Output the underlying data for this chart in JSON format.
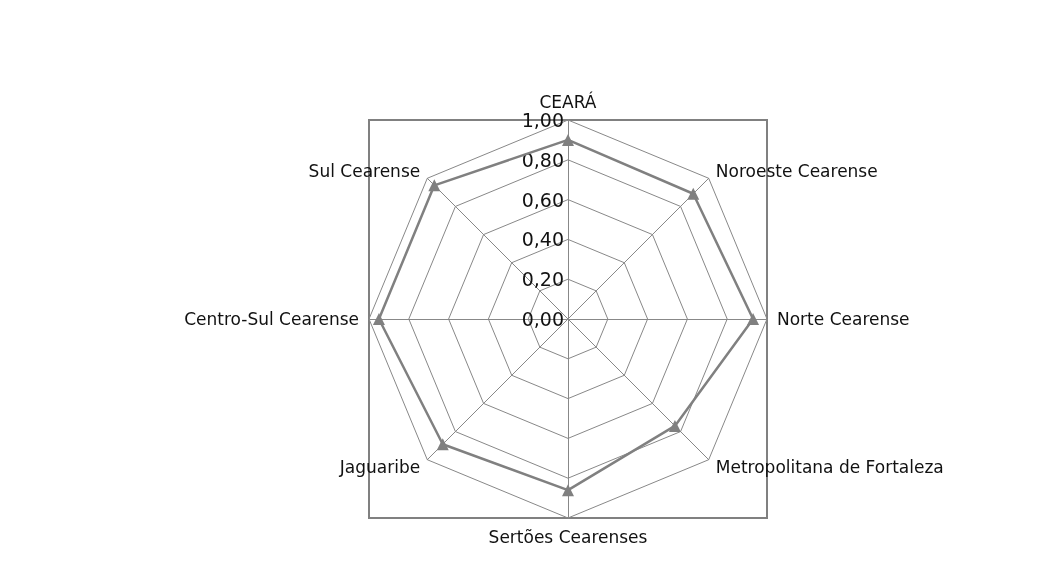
{
  "chart_data": {
    "type": "radar",
    "categories": [
      "CEARÁ",
      "Noroeste Cearense",
      "Norte Cearense",
      "Metropolitana de Fortaleza",
      "Sertões Cearenses",
      "Jaguaribe",
      "Centro-Sul Cearense",
      "Sul Cearense"
    ],
    "series": [
      {
        "color": "#808080",
        "values": [
          0.9,
          0.89,
          0.93,
          0.76,
          0.86,
          0.89,
          0.95,
          0.95
        ]
      }
    ],
    "ylim": [
      0,
      1
    ],
    "yticks": [
      {
        "value": 0,
        "label": "0,00"
      },
      {
        "value": 0.2,
        "label": "0,20"
      },
      {
        "value": 0.4,
        "label": "0,40"
      },
      {
        "value": 0.6,
        "label": "0,60"
      },
      {
        "value": 0.8,
        "label": "0,80"
      },
      {
        "value": 1,
        "label": "1,00"
      }
    ],
    "marker": "triangle"
  }
}
